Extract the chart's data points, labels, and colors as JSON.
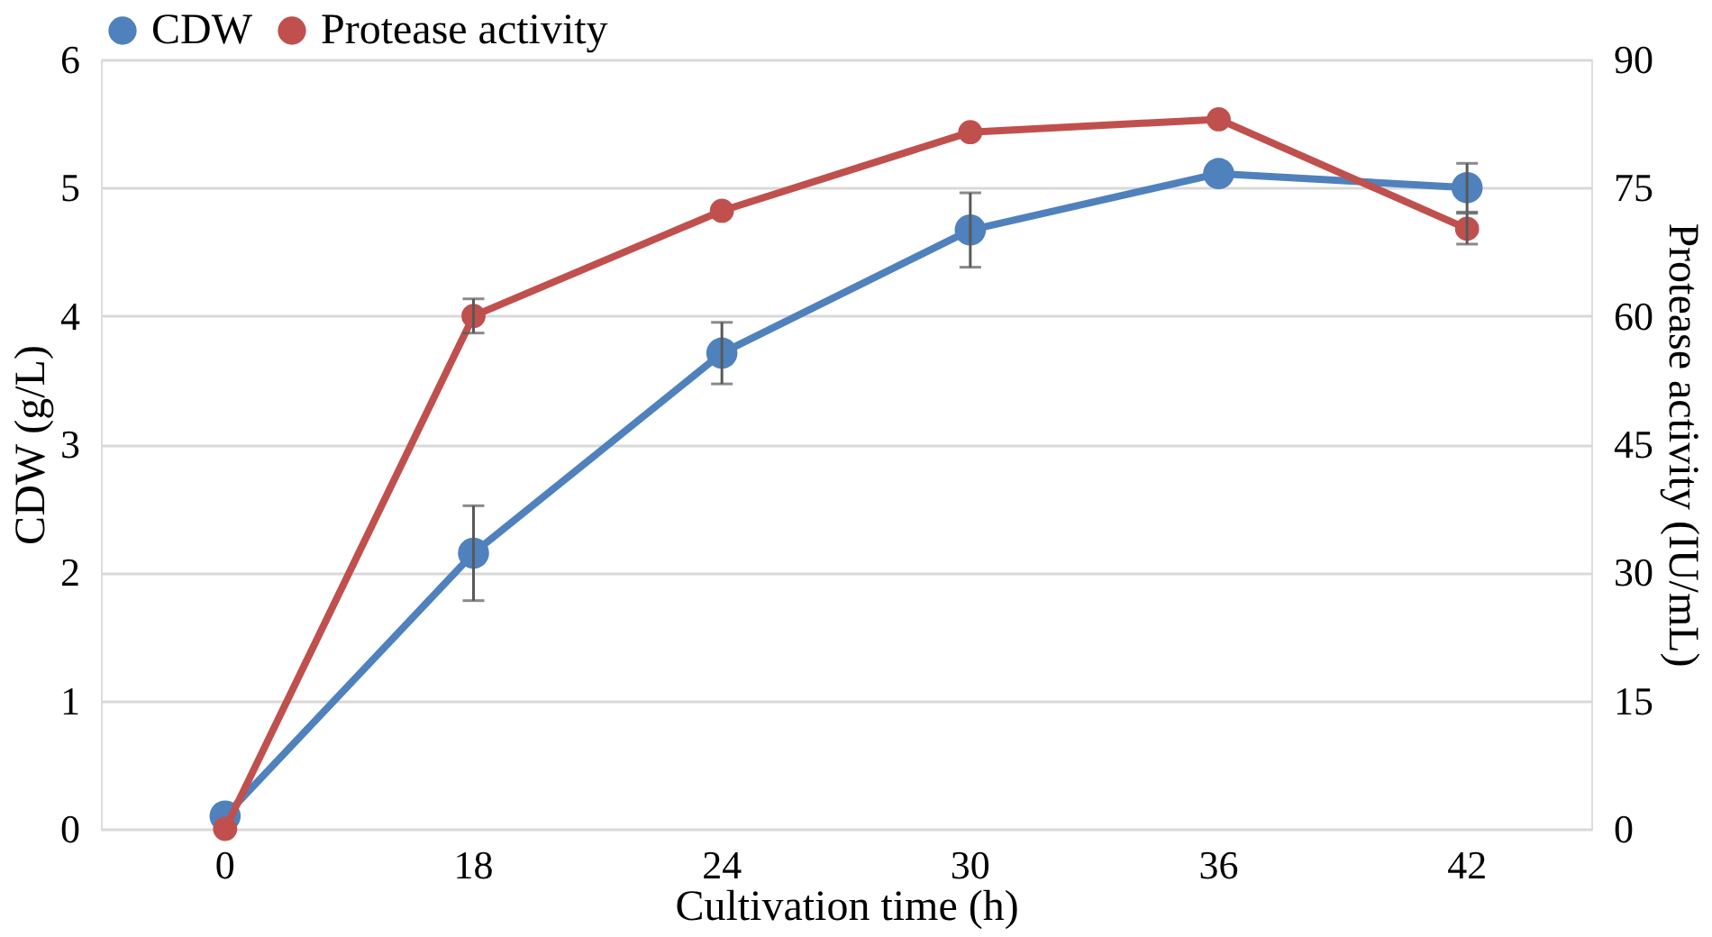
{
  "chart_data": {
    "type": "line",
    "xlabel": "Cultivation time (h)",
    "ylabel": "CDW (g/L)",
    "y2label": "Protease activity (IU/mL)",
    "categories": [
      "0",
      "18",
      "24",
      "30",
      "36",
      "42"
    ],
    "series": [
      {
        "name": "CDW",
        "color": "#4f81bd",
        "values": [
          0.1,
          2.15,
          3.71,
          4.67,
          5.11,
          5.0
        ],
        "errors": [
          null,
          0.37,
          0.24,
          0.29,
          null,
          0.19
        ]
      },
      {
        "name": "Protease activity",
        "color": "#c0504d",
        "axis": "y2",
        "values": [
          0,
          60,
          72.3,
          81.5,
          83,
          70.2
        ],
        "errors": [
          null,
          2,
          null,
          null,
          null,
          1.8
        ]
      }
    ],
    "ylim": [
      0,
      6
    ],
    "yticks": [
      0,
      1,
      2,
      3,
      4,
      5,
      6
    ],
    "y2lim": [
      0,
      90
    ],
    "y2ticks": [
      0,
      15,
      30,
      45,
      60,
      75,
      90
    ],
    "grid": "y",
    "legend": "top",
    "marker": "circle",
    "line_style": "solid"
  }
}
